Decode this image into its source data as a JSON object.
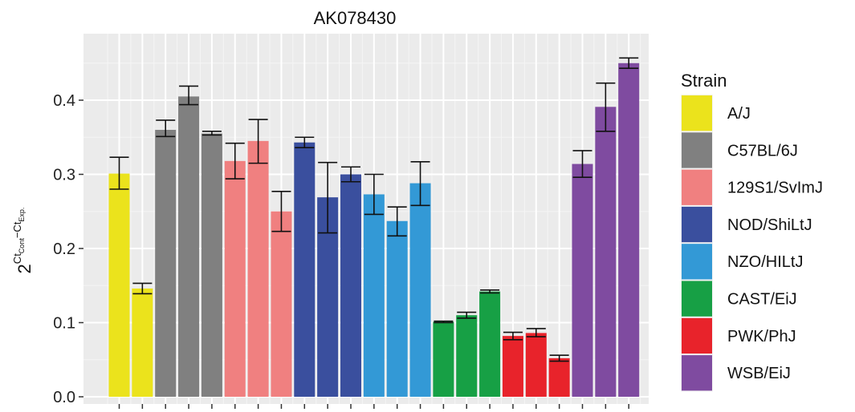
{
  "chart_data": {
    "type": "bar",
    "title": "AK078430",
    "ylabel": {
      "base": "2",
      "sup1": "Ct",
      "sub1": "Cont",
      "minus": "−Ct",
      "sub2": "Exp."
    },
    "xlabel": "",
    "ylim": [
      0,
      0.47
    ],
    "yticks": [
      0.0,
      0.1,
      0.2,
      0.3,
      0.4
    ],
    "ytick_labels": [
      "0.0",
      "0.1",
      "0.2",
      "0.3",
      "0.4"
    ],
    "grid": true,
    "legend": {
      "title": "Strain",
      "placement": "right",
      "entries": [
        {
          "name": "A/J",
          "color": "#ebe31c"
        },
        {
          "name": "C57BL/6J",
          "color": "#808080"
        },
        {
          "name": "129S1/SvImJ",
          "color": "#f08080"
        },
        {
          "name": "NOD/ShiLtJ",
          "color": "#3a4f9e"
        },
        {
          "name": "NZO/HILtJ",
          "color": "#3399d6"
        },
        {
          "name": "CAST/EiJ",
          "color": "#17a045"
        },
        {
          "name": "PWK/PhJ",
          "color": "#e8232b"
        },
        {
          "name": "WSB/EiJ",
          "color": "#7f4ba0"
        }
      ]
    },
    "bars": [
      {
        "strain": "A/J",
        "value": 0.301,
        "err_low": 0.28,
        "err_high": 0.323
      },
      {
        "strain": "A/J",
        "value": 0.146,
        "err_low": 0.139,
        "err_high": 0.153
      },
      {
        "strain": "C57BL/6J",
        "value": 0.36,
        "err_low": 0.351,
        "err_high": 0.373
      },
      {
        "strain": "C57BL/6J",
        "value": 0.405,
        "err_low": 0.394,
        "err_high": 0.419
      },
      {
        "strain": "C57BL/6J",
        "value": 0.355,
        "err_low": 0.353,
        "err_high": 0.358
      },
      {
        "strain": "129S1/SvImJ",
        "value": 0.318,
        "err_low": 0.294,
        "err_high": 0.342
      },
      {
        "strain": "129S1/SvImJ",
        "value": 0.345,
        "err_low": 0.315,
        "err_high": 0.374
      },
      {
        "strain": "129S1/SvImJ",
        "value": 0.25,
        "err_low": 0.223,
        "err_high": 0.277
      },
      {
        "strain": "NOD/ShiLtJ",
        "value": 0.343,
        "err_low": 0.336,
        "err_high": 0.35
      },
      {
        "strain": "NOD/ShiLtJ",
        "value": 0.269,
        "err_low": 0.221,
        "err_high": 0.316
      },
      {
        "strain": "NOD/ShiLtJ",
        "value": 0.3,
        "err_low": 0.29,
        "err_high": 0.31
      },
      {
        "strain": "NZO/HILtJ",
        "value": 0.273,
        "err_low": 0.246,
        "err_high": 0.3
      },
      {
        "strain": "NZO/HILtJ",
        "value": 0.237,
        "err_low": 0.217,
        "err_high": 0.256
      },
      {
        "strain": "NZO/HILtJ",
        "value": 0.288,
        "err_low": 0.258,
        "err_high": 0.317
      },
      {
        "strain": "CAST/EiJ",
        "value": 0.101,
        "err_low": 0.1,
        "err_high": 0.102
      },
      {
        "strain": "CAST/EiJ",
        "value": 0.11,
        "err_low": 0.106,
        "err_high": 0.114
      },
      {
        "strain": "CAST/EiJ",
        "value": 0.142,
        "err_low": 0.14,
        "err_high": 0.144
      },
      {
        "strain": "PWK/PhJ",
        "value": 0.082,
        "err_low": 0.077,
        "err_high": 0.087
      },
      {
        "strain": "PWK/PhJ",
        "value": 0.086,
        "err_low": 0.081,
        "err_high": 0.092
      },
      {
        "strain": "PWK/PhJ",
        "value": 0.052,
        "err_low": 0.048,
        "err_high": 0.056
      },
      {
        "strain": "WSB/EiJ",
        "value": 0.314,
        "err_low": 0.296,
        "err_high": 0.332
      },
      {
        "strain": "WSB/EiJ",
        "value": 0.391,
        "err_low": 0.358,
        "err_high": 0.423
      },
      {
        "strain": "WSB/EiJ",
        "value": 0.45,
        "err_low": 0.443,
        "err_high": 0.457
      }
    ]
  }
}
